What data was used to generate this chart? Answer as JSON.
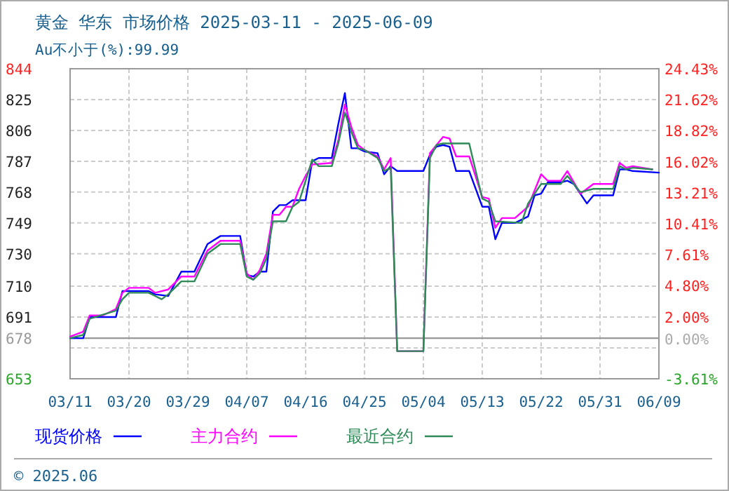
{
  "chart_data": {
    "type": "line",
    "title": "黄金 华东 市场价格 2025-03-11 - 2025-06-09",
    "subtitle": "Au不小于(%):99.99",
    "annotations": [
      "© 2025.06"
    ],
    "xlim": [
      "--03-11",
      "--06-09"
    ],
    "xticks": [
      {
        "value": "--03-11",
        "label": "03/11"
      },
      {
        "value": "--03-20",
        "label": "03/20"
      },
      {
        "value": "--03-29",
        "label": "03/29"
      },
      {
        "value": "--04-07",
        "label": "04/07"
      },
      {
        "value": "--04-16",
        "label": "04/16"
      },
      {
        "value": "--04-25",
        "label": "04/25"
      },
      {
        "value": "--05-04",
        "label": "05/04"
      },
      {
        "value": "--05-13",
        "label": "05/13"
      },
      {
        "value": "--05-22",
        "label": "05/22"
      },
      {
        "value": "--05-31",
        "label": "05/31"
      },
      {
        "value": "--06-09",
        "label": "06/09"
      }
    ],
    "ylim": [
      653,
      844
    ],
    "yticks": [
      844,
      825,
      806,
      787,
      768,
      749,
      730,
      710,
      691,
      {
        "value": 672,
        "label": null
      },
      653
    ],
    "y2lim": [
      -3.61,
      24.43
    ],
    "y2ticks": [
      {
        "value": 24.43,
        "label": "24.43%"
      },
      {
        "value": 21.62,
        "label": "21.62%"
      },
      {
        "value": 18.82,
        "label": "18.82%"
      },
      {
        "value": 16.02,
        "label": "16.02%"
      },
      {
        "value": 13.21,
        "label": "13.21%"
      },
      {
        "value": 10.41,
        "label": "10.41%"
      },
      {
        "value": 7.61,
        "label": "7.61%"
      },
      {
        "value": 4.8,
        "label": "4.80%"
      },
      {
        "value": 2.0,
        "label": "2.00%"
      },
      {
        "value": 0,
        "label": "0.00%"
      },
      {
        "value": -3.61,
        "label": "-3.61%"
      }
    ],
    "ref_lines": [
      {
        "axis": "y",
        "value": 678,
        "label": "678",
        "color": "#999999"
      }
    ],
    "grid": true,
    "legend": "bottom",
    "series": [
      {
        "name": "现货价格",
        "color": "#0000ff",
        "x": [
          "--03-11",
          "--03-13",
          "--03-14",
          "--03-18",
          "--03-19",
          "--03-23",
          "--03-24",
          "--03-26",
          "--03-28",
          "--03-30",
          "--04-01",
          "--04-03",
          "--04-06",
          "--04-07",
          "--04-08",
          "--04-09",
          "--04-10",
          "--04-11",
          "--04-12",
          "--04-13",
          "--04-14",
          "--04-16",
          "--04-17",
          "--04-18",
          "--04-20",
          "--04-21",
          "--04-22",
          "--04-23",
          "--04-24",
          "--04-25",
          "--04-27",
          "--04-28",
          "--04-29",
          "--04-30",
          "--05-04",
          "--05-05",
          "--05-06",
          "--05-07",
          "--05-08",
          "--05-09",
          "--05-11",
          "--05-13",
          "--05-14",
          "--05-15",
          "--05-16",
          "--05-18",
          "--05-20",
          "--05-21",
          "--05-22",
          "--05-23",
          "--05-25",
          "--05-26",
          "--05-27",
          "--05-29",
          "--05-30",
          "--06-02",
          "--06-03",
          "--06-04",
          "--06-05",
          "--06-09"
        ],
        "values": [
          678,
          678,
          691,
          691,
          707,
          707,
          705,
          704,
          719,
          719,
          736,
          741,
          741,
          717,
          716,
          719,
          719,
          756,
          760,
          760,
          763,
          763,
          787,
          789,
          789,
          810,
          829,
          795,
          795,
          793,
          792,
          779,
          784,
          781,
          781,
          791,
          796,
          797,
          796,
          781,
          781,
          759,
          759,
          739,
          749,
          749,
          753,
          766,
          767,
          774,
          774,
          775,
          773,
          761,
          766,
          766,
          782,
          782,
          781,
          780
        ]
      },
      {
        "name": "主力合约",
        "color": "#ff00ff",
        "x": [
          "--03-11",
          "--03-13",
          "--03-14",
          "--03-16",
          "--03-18",
          "--03-19",
          "--03-20",
          "--03-23",
          "--03-24",
          "--03-26",
          "--03-27",
          "--03-28",
          "--03-30",
          "--04-01",
          "--04-03",
          "--04-06",
          "--04-07",
          "--04-08",
          "--04-09",
          "--04-10",
          "--04-11",
          "--04-12",
          "--04-13",
          "--04-14",
          "--04-15",
          "--04-16",
          "--04-17",
          "--04-20",
          "--04-21",
          "--04-22",
          "--04-23",
          "--04-24",
          "--04-25",
          "--04-27",
          "--04-28",
          "--04-29",
          "--04-30",
          "--05-04",
          "--05-05",
          "--05-07",
          "--05-08",
          "--05-09",
          "--05-11",
          "--05-13",
          "--05-14",
          "--05-15",
          "--05-16",
          "--05-18",
          "--05-20",
          "--05-22",
          "--05-23",
          "--05-25",
          "--05-26",
          "--05-28",
          "--05-30",
          "--06-02",
          "--06-03",
          "--06-04",
          "--06-05",
          "--06-08"
        ],
        "values": [
          679,
          682,
          692,
          692,
          696,
          706,
          709,
          709,
          706,
          708,
          712,
          716,
          716,
          732,
          738,
          738,
          718,
          714,
          720,
          730,
          754,
          754,
          759,
          759,
          770,
          778,
          785,
          786,
          800,
          822,
          808,
          797,
          794,
          790,
          782,
          789,
          670,
          670,
          792,
          802,
          801,
          790,
          790,
          765,
          764,
          746,
          752,
          752,
          759,
          779,
          775,
          775,
          781,
          767,
          773,
          773,
          786,
          783,
          784,
          782
        ]
      },
      {
        "name": "最近合约",
        "color": "#2e8b57",
        "x": [
          "--03-11",
          "--03-13",
          "--03-14",
          "--03-18",
          "--03-19",
          "--03-20",
          "--03-23",
          "--03-24",
          "--03-25",
          "--03-26",
          "--03-28",
          "--03-30",
          "--04-01",
          "--04-03",
          "--04-06",
          "--04-07",
          "--04-08",
          "--04-09",
          "--04-10",
          "--04-11",
          "--04-13",
          "--04-14",
          "--04-15",
          "--04-16",
          "--04-17",
          "--04-18",
          "--04-20",
          "--04-21",
          "--04-22",
          "--04-23",
          "--04-24",
          "--04-25",
          "--04-27",
          "--04-28",
          "--04-29",
          "--04-30",
          "--05-04",
          "--05-05",
          "--05-06",
          "--05-07",
          "--05-11",
          "--05-13",
          "--05-14",
          "--05-15",
          "--05-19",
          "--05-20",
          "--05-22",
          "--05-25",
          "--05-26",
          "--05-28",
          "--05-30",
          "--06-02",
          "--06-03",
          "--06-04",
          "--06-05",
          "--06-08"
        ],
        "values": [
          678,
          680,
          690,
          695,
          702,
          706,
          706,
          704,
          702,
          705,
          713,
          713,
          730,
          736,
          736,
          716,
          714,
          718,
          727,
          750,
          750,
          759,
          762,
          775,
          788,
          784,
          784,
          798,
          817,
          805,
          795,
          794,
          789,
          781,
          783,
          670,
          670,
          789,
          797,
          798,
          798,
          764,
          762,
          750,
          749,
          761,
          773,
          773,
          778,
          768,
          770,
          770,
          784,
          782,
          783,
          782
        ]
      }
    ]
  }
}
